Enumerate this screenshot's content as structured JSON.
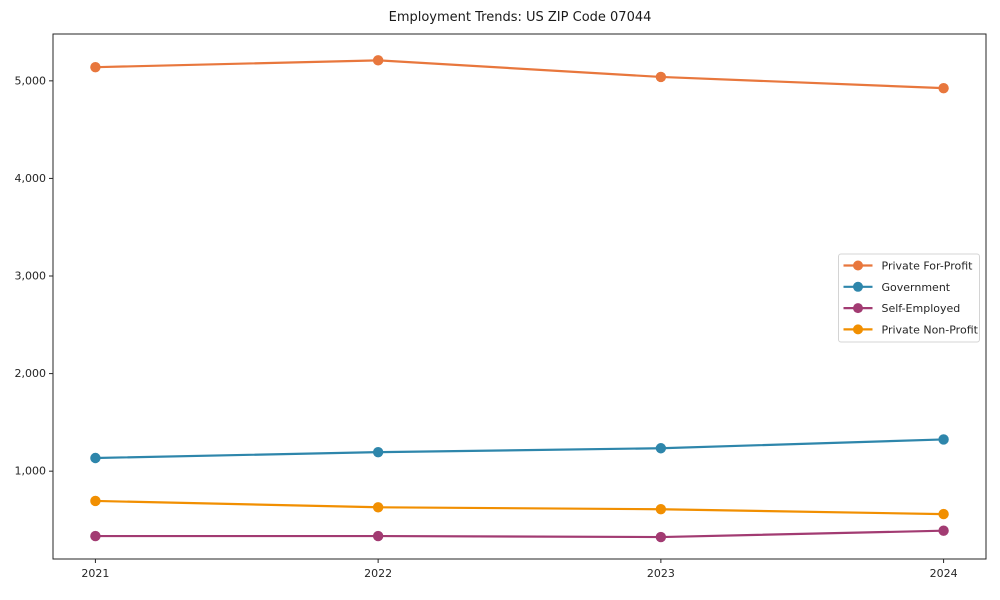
{
  "chart_data": {
    "type": "line",
    "title": "Employment Trends: US ZIP Code 07044",
    "xlabel": "",
    "ylabel": "",
    "x": [
      2021,
      2022,
      2023,
      2024
    ],
    "x_tick_labels": [
      "2021",
      "2022",
      "2023",
      "2024"
    ],
    "series": [
      {
        "name": "Private For-Profit",
        "color": "#E8773D",
        "values": [
          5140,
          5210,
          5040,
          4925
        ]
      },
      {
        "name": "Government",
        "color": "#2E86AB",
        "values": [
          1135,
          1195,
          1235,
          1325
        ]
      },
      {
        "name": "Self-Employed",
        "color": "#A23B72",
        "values": [
          335,
          335,
          325,
          390
        ]
      },
      {
        "name": "Private Non-Profit",
        "color": "#F18F01",
        "values": [
          695,
          630,
          610,
          560
        ]
      }
    ],
    "xlim": [
      2020.85,
      2024.15
    ],
    "ylim": [
      100,
      5480
    ],
    "yticks": [
      1000,
      2000,
      3000,
      4000,
      5000
    ],
    "ytick_labels": [
      "1,000",
      "2,000",
      "3,000",
      "4,000",
      "5,000"
    ],
    "grid": false,
    "legend_position": "center-right",
    "axis_color": "#262626",
    "text_color": "#262626",
    "background_color": "#ffffff"
  }
}
